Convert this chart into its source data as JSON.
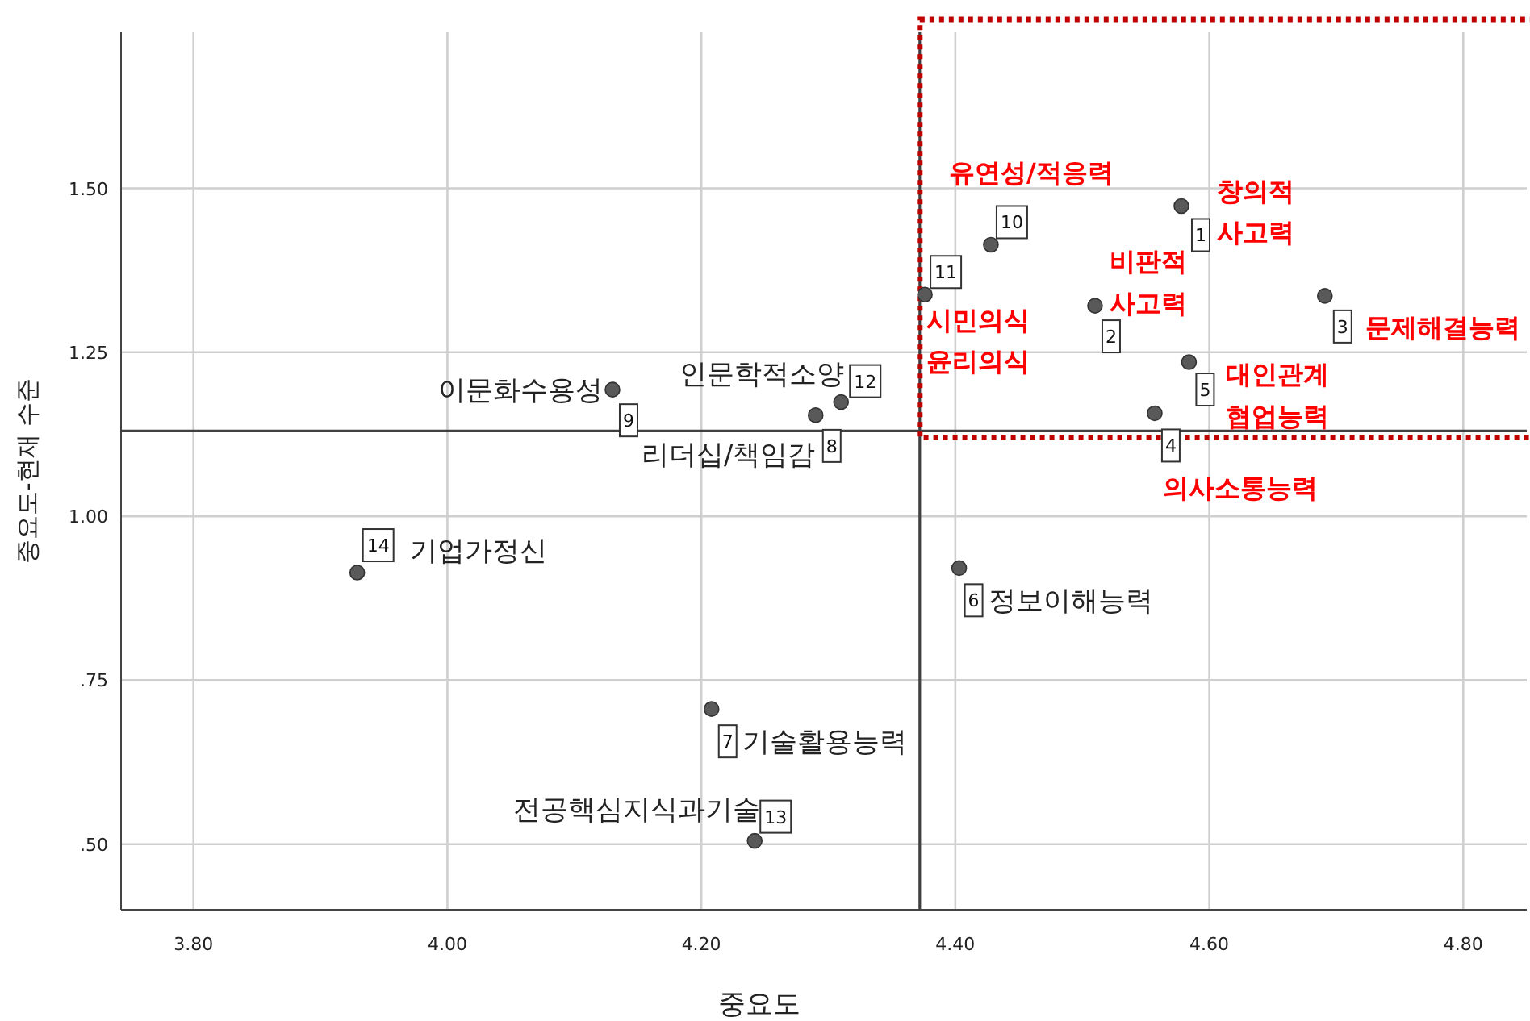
{
  "chart_data": {
    "type": "scatter",
    "xlabel": "중요도",
    "ylabel": "중요도-현재 수준",
    "xlim": [
      3.743,
      4.85
    ],
    "ylim": [
      0.4,
      1.738
    ],
    "xticks": [
      {
        "value": 3.8,
        "label": "3.80"
      },
      {
        "value": 4.0,
        "label": "4.00"
      },
      {
        "value": 4.2,
        "label": "4.20"
      },
      {
        "value": 4.4,
        "label": "4.40"
      },
      {
        "value": 4.6,
        "label": "4.60"
      },
      {
        "value": 4.8,
        "label": "4.80"
      }
    ],
    "yticks": [
      {
        "value": 0.5,
        "label": ".50"
      },
      {
        "value": 0.75,
        "label": ".75"
      },
      {
        "value": 1.0,
        "label": "1.00"
      },
      {
        "value": 1.25,
        "label": "1.25"
      },
      {
        "value": 1.5,
        "label": "1.50"
      }
    ],
    "grid": true,
    "marker": "circle",
    "series": [
      {
        "color": "#595959",
        "x": [
          4.578,
          4.51,
          4.691,
          4.557,
          4.584,
          4.403,
          4.208,
          4.29,
          4.13,
          4.428,
          4.376,
          4.31,
          4.242,
          3.929
        ],
        "values": [
          1.473,
          1.321,
          1.336,
          1.157,
          1.235,
          0.921,
          0.706,
          1.154,
          1.193,
          1.414,
          1.338,
          1.174,
          0.505,
          0.914
        ]
      }
    ],
    "ref_lines": [
      {
        "axis": "x",
        "value": 4.372,
        "color": "#404040"
      },
      {
        "axis": "y",
        "value": 1.13,
        "color": "#404040"
      }
    ],
    "annotations": [
      {
        "text": "1",
        "x": 4.578,
        "y": 1.473
      },
      {
        "text": "창의적\n사고력",
        "x": 4.578,
        "y": 1.473
      },
      {
        "text": "2",
        "x": 4.51,
        "y": 1.321
      },
      {
        "text": "비판적\n사고력",
        "x": 4.51,
        "y": 1.321
      },
      {
        "text": "3",
        "x": 4.691,
        "y": 1.336
      },
      {
        "text": "문제해결능력",
        "x": 4.691,
        "y": 1.336
      },
      {
        "text": "4",
        "x": 4.557,
        "y": 1.157
      },
      {
        "text": "의사소통능력",
        "x": 4.557,
        "y": 1.157
      },
      {
        "text": "5",
        "x": 4.584,
        "y": 1.235
      },
      {
        "text": "대인관계\n협업능력",
        "x": 4.584,
        "y": 1.235
      },
      {
        "text": "6",
        "x": 4.403,
        "y": 0.921
      },
      {
        "text": "정보이해능력",
        "x": 4.403,
        "y": 0.921
      },
      {
        "text": "7",
        "x": 4.208,
        "y": 0.706
      },
      {
        "text": "기술활용능력",
        "x": 4.208,
        "y": 0.706
      },
      {
        "text": "8",
        "x": 4.29,
        "y": 1.154
      },
      {
        "text": "리더십/책임감",
        "x": 4.29,
        "y": 1.154
      },
      {
        "text": "9",
        "x": 4.13,
        "y": 1.193
      },
      {
        "text": "이문화수용성",
        "x": 4.13,
        "y": 1.193
      },
      {
        "text": "10",
        "x": 4.428,
        "y": 1.414
      },
      {
        "text": "유연성/적응력",
        "x": 4.428,
        "y": 1.414
      },
      {
        "text": "11",
        "x": 4.376,
        "y": 1.338
      },
      {
        "text": "시민의식\n윤리의식",
        "x": 4.376,
        "y": 1.338
      },
      {
        "text": "12",
        "x": 4.31,
        "y": 1.174
      },
      {
        "text": "인문학적소양",
        "x": 4.31,
        "y": 1.174
      },
      {
        "text": "13",
        "x": 4.242,
        "y": 0.505
      },
      {
        "text": "전공핵심지식과기술",
        "x": 4.242,
        "y": 0.505
      },
      {
        "text": "14",
        "x": 3.929,
        "y": 0.914
      },
      {
        "text": "기업가정신",
        "x": 3.929,
        "y": 0.914
      }
    ]
  }
}
